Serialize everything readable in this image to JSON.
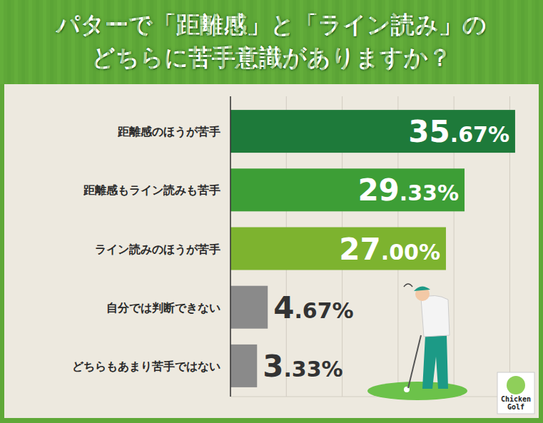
{
  "chart_data": {
    "type": "bar",
    "orientation": "horizontal",
    "title": "パターで「距離感」と「ライン読み」のどちらに苦手意識がありますか？",
    "categories": [
      "距離感のほうが苦手",
      "距離感もライン読みも苦手",
      "ライン読みのほうが苦手",
      "自分では判断できない",
      "どちらもあまり苦手ではない"
    ],
    "values": [
      35.67,
      29.33,
      27.0,
      4.67,
      3.33
    ],
    "value_labels": [
      "35.67%",
      "29.33%",
      "27.00%",
      "4.67%",
      "3.33%"
    ],
    "colors": [
      "#1e7a3a",
      "#3d9e36",
      "#7db32f",
      "#8a8a8a",
      "#8a8a8a"
    ],
    "xlim": [
      0,
      38
    ],
    "xticks": [
      0,
      7,
      14,
      21,
      28,
      35
    ],
    "grid": true,
    "tick_labels": false,
    "data_labels": true,
    "annotations": [
      "Chicken",
      "Golf"
    ]
  }
}
